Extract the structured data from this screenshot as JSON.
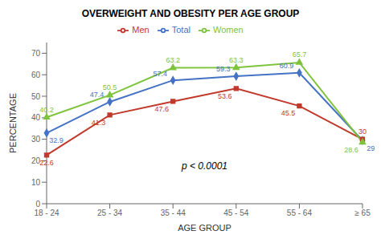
{
  "chart_data": {
    "type": "line",
    "title": "OVERWEIGHT AND OBESITY PER AGE GROUP",
    "xlabel": "AGE GROUP",
    "ylabel": "PERCENTAGE",
    "categories": [
      "18 - 24",
      "25 - 34",
      "35 - 44",
      "45 - 54",
      "55 - 64",
      "≥ 65"
    ],
    "series": [
      {
        "name": "Total",
        "color": "#4472C4",
        "marker": "diamond",
        "values": [
          32.9,
          47.4,
          57.4,
          59.3,
          60.9,
          29.4
        ]
      },
      {
        "name": "Men",
        "color": "#C0392B",
        "marker": "square",
        "values": [
          22.6,
          41.3,
          47.6,
          53.6,
          45.5,
          30.0
        ]
      },
      {
        "name": "Women",
        "color": "#7DC33B",
        "marker": "triangle",
        "values": [
          40.2,
          50.5,
          63.2,
          63.3,
          65.7,
          28.6
        ]
      }
    ],
    "ylim": [
      0,
      75
    ],
    "yticks": [
      0,
      10,
      20,
      30,
      40,
      50,
      60,
      70
    ],
    "annotation": "p < 0.0001",
    "data_labels": true,
    "grid": false,
    "legend": "top"
  }
}
